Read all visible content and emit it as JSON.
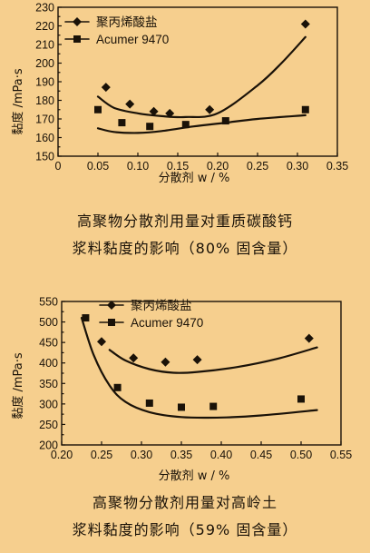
{
  "chart_data": [
    {
      "type": "scatter",
      "xlabel": "分散剂 w / %",
      "ylabel": "黏度 /mPa·s",
      "xlim": [
        0,
        0.35
      ],
      "ylim": [
        150,
        230
      ],
      "x_ticks": [
        "0",
        "0.05",
        "0.10",
        "0.15",
        "0.20",
        "0.25",
        "0.30",
        "0.35"
      ],
      "y_ticks": [
        "150",
        "160",
        "170",
        "180",
        "190",
        "200",
        "210",
        "220",
        "230"
      ],
      "legend": "top-left",
      "series": [
        {
          "name": "聚丙烯酸盐",
          "marker": "diamond",
          "points": [
            [
              0.06,
              187
            ],
            [
              0.09,
              178
            ],
            [
              0.12,
              174
            ],
            [
              0.14,
              173
            ],
            [
              0.19,
              175
            ],
            [
              0.31,
              221
            ]
          ],
          "fit": [
            [
              0.05,
              182
            ],
            [
              0.07,
              176
            ],
            [
              0.1,
              173
            ],
            [
              0.13,
              171.5
            ],
            [
              0.16,
              171
            ],
            [
              0.2,
              173
            ],
            [
              0.25,
              188
            ],
            [
              0.28,
              200
            ],
            [
              0.31,
              214
            ]
          ]
        },
        {
          "name": "Acumer 9470",
          "marker": "square",
          "points": [
            [
              0.05,
              175
            ],
            [
              0.08,
              168
            ],
            [
              0.115,
              166
            ],
            [
              0.16,
              167
            ],
            [
              0.21,
              169
            ],
            [
              0.31,
              175
            ]
          ],
          "fit": [
            [
              0.05,
              165
            ],
            [
              0.07,
              163
            ],
            [
              0.1,
              162.5
            ],
            [
              0.13,
              163.5
            ],
            [
              0.17,
              166
            ],
            [
              0.21,
              168
            ],
            [
              0.25,
              170
            ],
            [
              0.31,
              172
            ]
          ]
        }
      ],
      "caption_line1": "高聚物分散剂用量对重质碳酸钙",
      "caption_line2": "浆料黏度的影响（80% 固含量）"
    },
    {
      "type": "scatter",
      "xlabel": "分散剂 w / %",
      "ylabel": "黏度 /mPa·s",
      "xlim": [
        0.2,
        0.55
      ],
      "ylim": [
        200,
        550
      ],
      "x_ticks": [
        "0.20",
        "0.25",
        "0.30",
        "0.35",
        "0.40",
        "0.45",
        "0.50",
        "0.55"
      ],
      "y_ticks": [
        "200",
        "250",
        "300",
        "350",
        "400",
        "450",
        "500",
        "550"
      ],
      "legend": "top-right",
      "series": [
        {
          "name": "聚丙烯酸盐",
          "marker": "diamond",
          "points": [
            [
              0.25,
              452
            ],
            [
              0.29,
              412
            ],
            [
              0.33,
              402
            ],
            [
              0.37,
              408
            ],
            [
              0.51,
              460
            ]
          ],
          "fit": [
            [
              0.26,
              432
            ],
            [
              0.28,
              406
            ],
            [
              0.31,
              385
            ],
            [
              0.34,
              376
            ],
            [
              0.37,
              378
            ],
            [
              0.42,
              390
            ],
            [
              0.47,
              410
            ],
            [
              0.52,
              438
            ]
          ]
        },
        {
          "name": "Acumer 9470",
          "marker": "square",
          "points": [
            [
              0.23,
              510
            ],
            [
              0.27,
              340
            ],
            [
              0.31,
              302
            ],
            [
              0.35,
              292
            ],
            [
              0.39,
              294
            ],
            [
              0.5,
              312
            ]
          ],
          "fit": [
            [
              0.225,
              510
            ],
            [
              0.24,
              420
            ],
            [
              0.26,
              345
            ],
            [
              0.28,
              305
            ],
            [
              0.31,
              280
            ],
            [
              0.35,
              268
            ],
            [
              0.4,
              267
            ],
            [
              0.45,
              272
            ],
            [
              0.52,
              285
            ]
          ]
        }
      ],
      "caption_line1": "高聚物分散剂用量对高岭土",
      "caption_line2": "浆料黏度的影响（59% 固含量）"
    }
  ]
}
